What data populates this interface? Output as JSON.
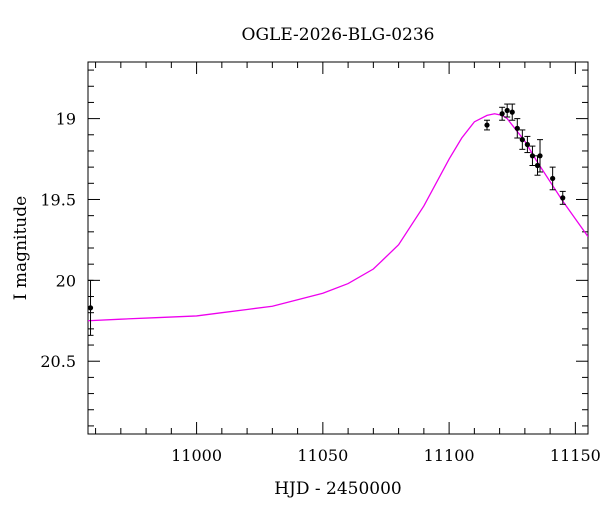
{
  "chart_data": {
    "type": "scatter",
    "title": "OGLE-2026-BLG-0236",
    "xlabel": "HJD - 2450000",
    "ylabel": "I magnitude",
    "xlim": [
      10957,
      11155
    ],
    "ylim": [
      20.95,
      18.65
    ],
    "y_inverted": true,
    "x_ticks": [
      11000,
      11050,
      11100,
      11150
    ],
    "y_ticks": [
      19,
      19.5,
      20,
      20.5
    ],
    "x_tick_labels": [
      "11000",
      "11050",
      "11100",
      "11150"
    ],
    "y_tick_labels": [
      "19",
      "19.5",
      "20",
      "20.5"
    ],
    "grid": false,
    "colors": {
      "model": "#ee00ee",
      "points": "#000000",
      "axes": "#000000"
    },
    "series": [
      {
        "kind": "points",
        "x": [
          10958,
          11115,
          11121,
          11123,
          11125,
          11127,
          11129,
          11131,
          11133,
          11135,
          11136,
          11141,
          11145
        ],
        "y": [
          20.17,
          19.04,
          18.97,
          18.95,
          18.96,
          19.06,
          19.13,
          19.16,
          19.23,
          19.29,
          19.23,
          19.37,
          19.49
        ],
        "yerr": [
          0.17,
          0.03,
          0.04,
          0.04,
          0.05,
          0.06,
          0.06,
          0.05,
          0.06,
          0.06,
          0.1,
          0.07,
          0.04
        ]
      },
      {
        "kind": "model",
        "x": [
          10957,
          10970,
          10985,
          11000,
          11010,
          11020,
          11030,
          11040,
          11050,
          11060,
          11070,
          11080,
          11090,
          11100,
          11105,
          11110,
          11115,
          11118,
          11121,
          11123,
          11126,
          11130,
          11135,
          11140,
          11145,
          11150,
          11155
        ],
        "y": [
          20.25,
          20.24,
          20.23,
          20.22,
          20.2,
          20.18,
          20.16,
          20.12,
          20.08,
          20.02,
          19.93,
          19.78,
          19.54,
          19.25,
          19.12,
          19.02,
          18.98,
          18.97,
          18.98,
          19.0,
          19.06,
          19.14,
          19.27,
          19.39,
          19.51,
          19.62,
          19.73
        ]
      }
    ]
  }
}
